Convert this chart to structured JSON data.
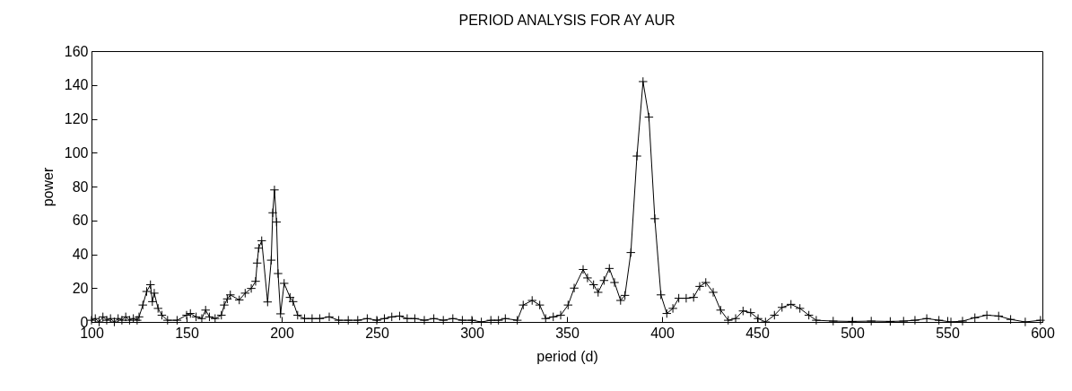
{
  "chart_data": {
    "type": "line",
    "title": "PERIOD ANALYSIS FOR AY AUR",
    "xlabel": "period (d)",
    "ylabel": "power",
    "marker": "cross",
    "line_style": "solid",
    "grid": false,
    "xlim": [
      100,
      600
    ],
    "ylim": [
      0,
      160
    ],
    "xticks": [
      100,
      150,
      200,
      250,
      300,
      350,
      400,
      450,
      500,
      550,
      600
    ],
    "yticks": [
      0,
      20,
      40,
      60,
      80,
      100,
      120,
      140,
      160
    ],
    "series": [
      {
        "color": "#000000",
        "x": [
          100,
          102,
          104,
          106,
          108,
          110,
          112,
          114,
          116,
          118,
          120,
          122,
          124,
          125,
          127,
          129,
          131,
          132,
          133,
          135,
          137,
          140,
          145,
          150,
          152,
          155,
          158,
          160,
          162,
          165,
          168.3,
          169.8,
          171.4,
          173,
          177.7,
          180.8,
          184,
          186.3,
          187.1,
          187.9,
          189.5,
          192.6,
          194.5,
          195.3,
          196.2,
          197.3,
          198.1,
          199.4,
          201.3,
          204.4,
          206,
          208.4,
          212,
          216,
          220,
          225,
          230,
          235,
          240,
          245,
          250,
          254,
          257.9,
          262,
          266,
          270,
          275,
          280,
          285,
          290,
          295,
          300,
          305,
          310,
          314,
          317.6,
          323.9,
          327,
          331.7,
          335.7,
          338.8,
          342.8,
          346.7,
          350.6,
          353.8,
          358.5,
          360.8,
          364,
          366.4,
          369.5,
          372.3,
          375,
          378.2,
          380.5,
          383.6,
          386.8,
          390,
          393.1,
          396.2,
          399.4,
          402.5,
          405.7,
          408.8,
          412.7,
          416.6,
          419.8,
          423,
          426.9,
          430.8,
          434.8,
          438.7,
          442.6,
          446.6,
          450.5,
          454.4,
          459.1,
          463.1,
          467.8,
          472.5,
          477.2,
          481.1,
          490,
          500,
          510,
          520,
          527,
          533,
          539.2,
          545.6,
          551.9,
          558,
          564.5,
          570.8,
          577,
          583.3,
          591,
          599
        ],
        "values": [
          1,
          2,
          0,
          3,
          1,
          2,
          0,
          2,
          1,
          3,
          1,
          2,
          1,
          3,
          10,
          18,
          22,
          12,
          17,
          8,
          4,
          1,
          1,
          4,
          5,
          3,
          2,
          7,
          3,
          2,
          4,
          10,
          13.6,
          16,
          13,
          17,
          19.8,
          24,
          34.8,
          43.6,
          48,
          11.8,
          36.5,
          64.5,
          78,
          59,
          28.6,
          4.8,
          22.8,
          14.5,
          12,
          4,
          2,
          2,
          2,
          3,
          1,
          1,
          1,
          2,
          1,
          2,
          3,
          3.5,
          2,
          2,
          1,
          2,
          1,
          2,
          1,
          1,
          0,
          1,
          1,
          2,
          1,
          10,
          12.7,
          10,
          2,
          3,
          4,
          10,
          20,
          31,
          26,
          22,
          17.5,
          24.5,
          31.6,
          23.3,
          12.7,
          15.7,
          41,
          98,
          142,
          121,
          61,
          16,
          5,
          8,
          14,
          14,
          14.5,
          21,
          23.3,
          17.5,
          7,
          1,
          2,
          6.5,
          5.5,
          2,
          0,
          4,
          8.6,
          10.4,
          8,
          4,
          1,
          0.5,
          0.3,
          0.5,
          0.3,
          0.5,
          1,
          2,
          1,
          0,
          0.5,
          2.5,
          4,
          3.5,
          1.5,
          0,
          1
        ]
      }
    ]
  }
}
